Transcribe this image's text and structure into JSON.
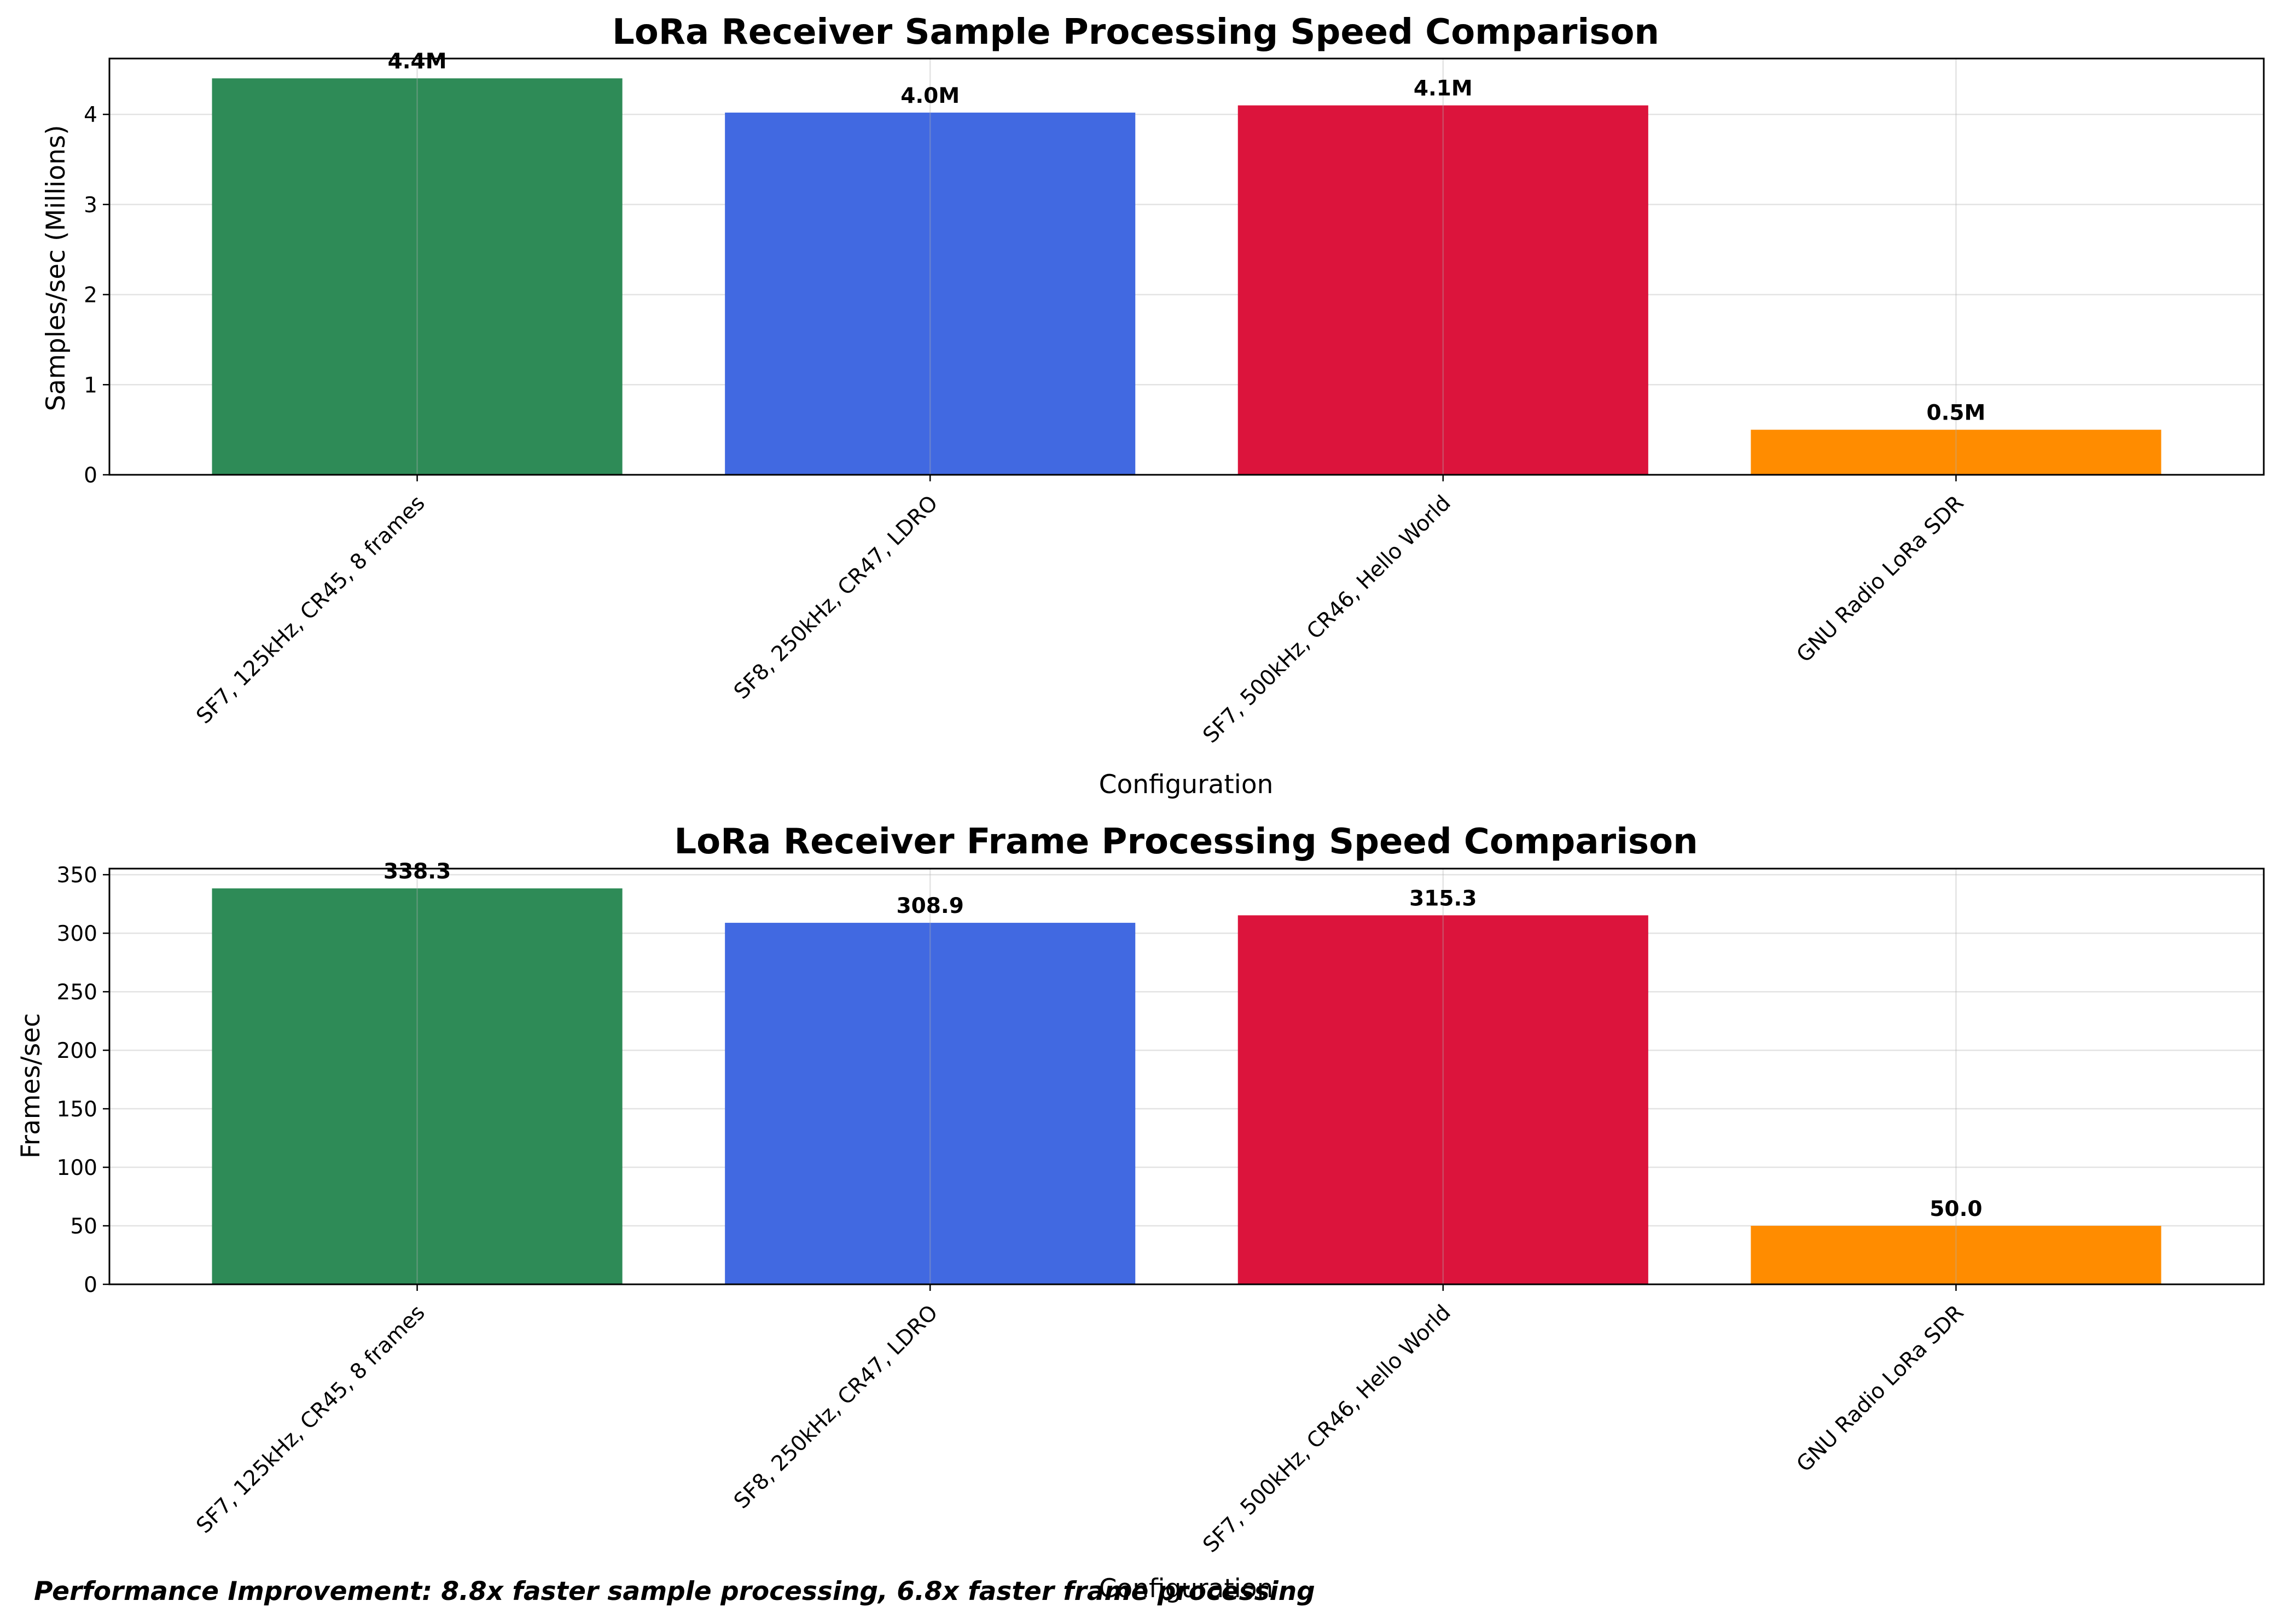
{
  "chart_data": [
    {
      "type": "bar",
      "title": "LoRa Receiver Sample Processing Speed Comparison",
      "xlabel": "Configuration",
      "ylabel": "Samples/sec (Millions)",
      "categories": [
        "SF7, 125kHz, CR45, 8 frames",
        "SF8, 250kHz, CR47, LDRO",
        "SF7, 500kHz, CR46, Hello World",
        "GNU Radio LoRa SDR"
      ],
      "values": [
        4.4,
        4.02,
        4.1,
        0.5
      ],
      "value_labels": [
        "4.4M",
        "4.0M",
        "4.1M",
        "0.5M"
      ],
      "colors": [
        "#2e8b57",
        "#4169e1",
        "#dc143c",
        "#ff8c00"
      ],
      "ylim": [
        0,
        4.62
      ],
      "yticks": [
        0,
        1,
        2,
        3,
        4
      ],
      "ytick_labels": [
        "0",
        "1",
        "2",
        "3",
        "4"
      ],
      "grid": true,
      "legend": "none"
    },
    {
      "type": "bar",
      "title": "LoRa Receiver Frame Processing Speed Comparison",
      "xlabel": "Configuration",
      "ylabel": "Frames/sec",
      "categories": [
        "SF7, 125kHz, CR45, 8 frames",
        "SF8, 250kHz, CR47, LDRO",
        "SF7, 500kHz, CR46, Hello World",
        "GNU Radio LoRa SDR"
      ],
      "values": [
        338.3,
        308.9,
        315.3,
        50.0
      ],
      "value_labels": [
        "338.3",
        "308.9",
        "315.3",
        "50.0"
      ],
      "colors": [
        "#2e8b57",
        "#4169e1",
        "#dc143c",
        "#ff8c00"
      ],
      "ylim": [
        0,
        355.2
      ],
      "yticks": [
        0,
        50,
        100,
        150,
        200,
        250,
        300,
        350
      ],
      "ytick_labels": [
        "0",
        "50",
        "100",
        "150",
        "200",
        "250",
        "300",
        "350"
      ],
      "grid": true,
      "legend": "none"
    }
  ],
  "footer": {
    "note": "Performance Improvement: 8.8x faster sample processing, 6.8x faster frame processing"
  }
}
